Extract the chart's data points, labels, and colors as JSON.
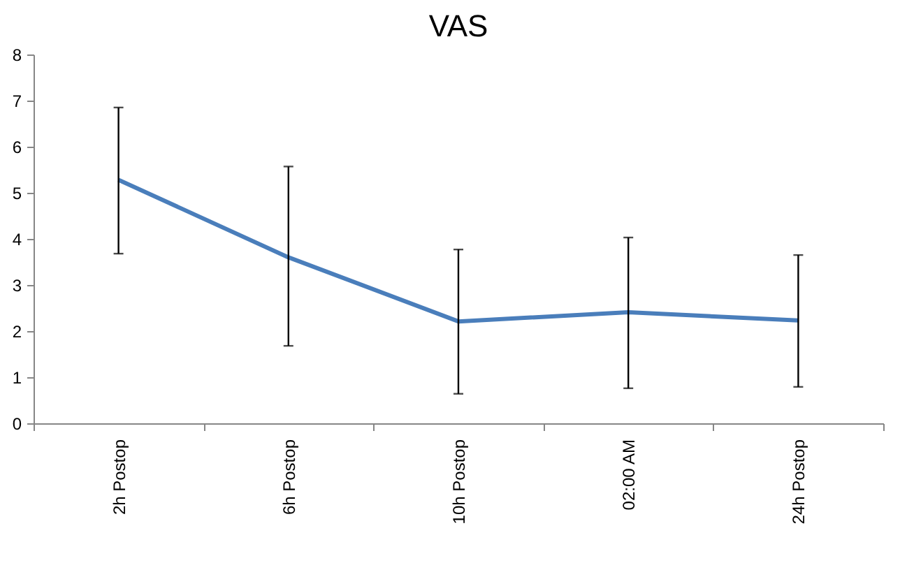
{
  "chart_data": {
    "type": "line",
    "title": "VAS",
    "categories": [
      "2h Postop",
      "6h Postop",
      "10h Postop",
      "02:00 AM",
      "24h Postop"
    ],
    "series": [
      {
        "color": "#4a7ebb",
        "values": [
          5.28,
          3.6,
          2.21,
          2.41,
          2.23
        ],
        "errors": [
          [
            3.68,
            6.85
          ],
          [
            1.68,
            5.57
          ],
          [
            0.64,
            3.77
          ],
          [
            0.76,
            4.03
          ],
          [
            0.79,
            3.65
          ]
        ]
      }
    ],
    "ylim": [
      0,
      8
    ],
    "yticks": [
      0,
      1,
      2,
      3,
      4,
      5,
      6,
      7,
      8
    ],
    "grid": false,
    "legend": false,
    "marker": "none",
    "line_style": "solid"
  }
}
